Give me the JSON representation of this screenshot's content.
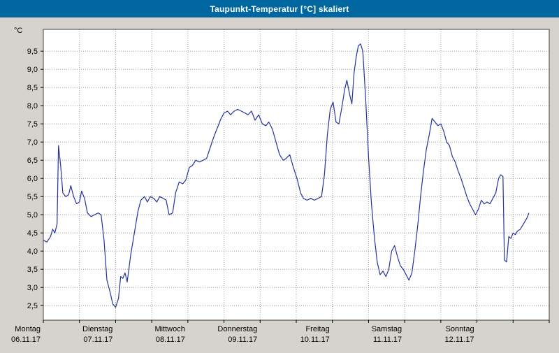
{
  "window": {
    "title": "Taupunkt-Temperatur [°C] skaliert"
  },
  "colors": {
    "titlebar_bg": "#0066a0",
    "titlebar_text": "#ffffff",
    "page_bg": "#d6d3ce",
    "plot_bg": "#ffffff",
    "plot_border": "#404040",
    "grid": "#9c9c9c",
    "tick": "#000000",
    "line": "#2433a0"
  },
  "chart_data": {
    "type": "line",
    "title": "Taupunkt-Temperatur [°C] skaliert",
    "ylabel": "°C",
    "xlabel": "",
    "ylim": [
      2.1,
      10.1
    ],
    "y_tick_min": 2.5,
    "y_tick_max": 9.5,
    "y_tick_step": 0.5,
    "xlim_days": [
      0,
      7
    ],
    "x_grid_step_days": 0.5,
    "grid": "dotted",
    "legend": "none",
    "days": [
      {
        "name": "Montag",
        "date": "06.11.17"
      },
      {
        "name": "Dienstag",
        "date": "07.11.17"
      },
      {
        "name": "Mittwoch",
        "date": "08.11.17"
      },
      {
        "name": "Donnerstag",
        "date": "09.11.17"
      },
      {
        "name": "Freitag",
        "date": "10.11.17"
      },
      {
        "name": "Samstag",
        "date": "11.11.17"
      },
      {
        "name": "Sonntag",
        "date": "12.11.17"
      }
    ],
    "series": [
      {
        "name": "Taupunkt-Temperatur",
        "color": "#2433a0",
        "points": [
          [
            0.0,
            4.3
          ],
          [
            0.05,
            4.25
          ],
          [
            0.1,
            4.4
          ],
          [
            0.13,
            4.6
          ],
          [
            0.16,
            4.5
          ],
          [
            0.19,
            4.75
          ],
          [
            0.21,
            6.9
          ],
          [
            0.24,
            6.35
          ],
          [
            0.27,
            5.6
          ],
          [
            0.31,
            5.5
          ],
          [
            0.35,
            5.55
          ],
          [
            0.38,
            5.8
          ],
          [
            0.42,
            5.5
          ],
          [
            0.46,
            5.3
          ],
          [
            0.5,
            5.35
          ],
          [
            0.53,
            5.65
          ],
          [
            0.57,
            5.45
          ],
          [
            0.61,
            5.05
          ],
          [
            0.66,
            4.95
          ],
          [
            0.71,
            5.0
          ],
          [
            0.76,
            5.05
          ],
          [
            0.8,
            5.0
          ],
          [
            0.84,
            4.3
          ],
          [
            0.88,
            3.2
          ],
          [
            0.92,
            2.9
          ],
          [
            0.96,
            2.55
          ],
          [
            1.0,
            2.45
          ],
          [
            1.04,
            2.7
          ],
          [
            1.07,
            3.3
          ],
          [
            1.1,
            3.25
          ],
          [
            1.13,
            3.4
          ],
          [
            1.16,
            3.15
          ],
          [
            1.21,
            3.9
          ],
          [
            1.26,
            4.5
          ],
          [
            1.31,
            5.1
          ],
          [
            1.35,
            5.4
          ],
          [
            1.4,
            5.5
          ],
          [
            1.44,
            5.35
          ],
          [
            1.48,
            5.5
          ],
          [
            1.53,
            5.45
          ],
          [
            1.57,
            5.35
          ],
          [
            1.61,
            5.5
          ],
          [
            1.66,
            5.45
          ],
          [
            1.7,
            5.4
          ],
          [
            1.74,
            5.0
          ],
          [
            1.79,
            5.05
          ],
          [
            1.83,
            5.6
          ],
          [
            1.88,
            5.9
          ],
          [
            1.93,
            5.85
          ],
          [
            1.97,
            5.95
          ],
          [
            2.02,
            6.3
          ],
          [
            2.06,
            6.35
          ],
          [
            2.11,
            6.5
          ],
          [
            2.16,
            6.45
          ],
          [
            2.21,
            6.5
          ],
          [
            2.26,
            6.55
          ],
          [
            2.31,
            6.85
          ],
          [
            2.36,
            7.15
          ],
          [
            2.41,
            7.4
          ],
          [
            2.46,
            7.65
          ],
          [
            2.5,
            7.8
          ],
          [
            2.55,
            7.85
          ],
          [
            2.59,
            7.75
          ],
          [
            2.64,
            7.85
          ],
          [
            2.69,
            7.9
          ],
          [
            2.74,
            7.85
          ],
          [
            2.79,
            7.8
          ],
          [
            2.83,
            7.75
          ],
          [
            2.88,
            7.85
          ],
          [
            2.93,
            7.6
          ],
          [
            2.98,
            7.75
          ],
          [
            3.03,
            7.5
          ],
          [
            3.08,
            7.45
          ],
          [
            3.12,
            7.55
          ],
          [
            3.17,
            7.35
          ],
          [
            3.22,
            7.0
          ],
          [
            3.27,
            6.65
          ],
          [
            3.32,
            6.5
          ],
          [
            3.36,
            6.55
          ],
          [
            3.41,
            6.65
          ],
          [
            3.46,
            6.3
          ],
          [
            3.51,
            6.0
          ],
          [
            3.56,
            5.6
          ],
          [
            3.6,
            5.45
          ],
          [
            3.65,
            5.4
          ],
          [
            3.7,
            5.45
          ],
          [
            3.75,
            5.4
          ],
          [
            3.8,
            5.45
          ],
          [
            3.85,
            5.5
          ],
          [
            3.89,
            6.1
          ],
          [
            3.93,
            7.2
          ],
          [
            3.97,
            7.9
          ],
          [
            4.01,
            8.1
          ],
          [
            4.05,
            7.55
          ],
          [
            4.09,
            7.5
          ],
          [
            4.13,
            7.95
          ],
          [
            4.17,
            8.45
          ],
          [
            4.2,
            8.7
          ],
          [
            4.24,
            8.3
          ],
          [
            4.27,
            8.05
          ],
          [
            4.3,
            8.9
          ],
          [
            4.33,
            9.35
          ],
          [
            4.36,
            9.65
          ],
          [
            4.39,
            9.7
          ],
          [
            4.42,
            9.5
          ],
          [
            4.46,
            8.2
          ],
          [
            4.5,
            6.6
          ],
          [
            4.54,
            5.3
          ],
          [
            4.58,
            4.4
          ],
          [
            4.62,
            3.7
          ],
          [
            4.66,
            3.35
          ],
          [
            4.7,
            3.45
          ],
          [
            4.74,
            3.3
          ],
          [
            4.78,
            3.5
          ],
          [
            4.82,
            4.0
          ],
          [
            4.86,
            4.15
          ],
          [
            4.9,
            3.85
          ],
          [
            4.94,
            3.6
          ],
          [
            4.98,
            3.5
          ],
          [
            5.02,
            3.35
          ],
          [
            5.06,
            3.2
          ],
          [
            5.1,
            3.4
          ],
          [
            5.14,
            4.0
          ],
          [
            5.18,
            4.7
          ],
          [
            5.22,
            5.5
          ],
          [
            5.26,
            6.2
          ],
          [
            5.3,
            6.8
          ],
          [
            5.34,
            7.2
          ],
          [
            5.38,
            7.65
          ],
          [
            5.42,
            7.55
          ],
          [
            5.46,
            7.45
          ],
          [
            5.5,
            7.5
          ],
          [
            5.54,
            7.3
          ],
          [
            5.58,
            7.0
          ],
          [
            5.62,
            6.9
          ],
          [
            5.66,
            6.6
          ],
          [
            5.7,
            6.45
          ],
          [
            5.74,
            6.2
          ],
          [
            5.78,
            6.0
          ],
          [
            5.82,
            5.75
          ],
          [
            5.86,
            5.5
          ],
          [
            5.9,
            5.3
          ],
          [
            5.94,
            5.15
          ],
          [
            5.98,
            5.0
          ],
          [
            6.02,
            5.15
          ],
          [
            6.06,
            5.4
          ],
          [
            6.1,
            5.3
          ],
          [
            6.14,
            5.35
          ],
          [
            6.18,
            5.3
          ],
          [
            6.22,
            5.45
          ],
          [
            6.26,
            5.6
          ],
          [
            6.3,
            6.0
          ],
          [
            6.33,
            6.1
          ],
          [
            6.36,
            6.05
          ],
          [
            6.38,
            3.75
          ],
          [
            6.41,
            3.7
          ],
          [
            6.44,
            4.4
          ],
          [
            6.47,
            4.35
          ],
          [
            6.5,
            4.5
          ],
          [
            6.53,
            4.45
          ],
          [
            6.56,
            4.55
          ],
          [
            6.6,
            4.6
          ],
          [
            6.63,
            4.7
          ],
          [
            6.66,
            4.8
          ],
          [
            6.69,
            4.9
          ],
          [
            6.72,
            5.05
          ]
        ]
      }
    ]
  }
}
